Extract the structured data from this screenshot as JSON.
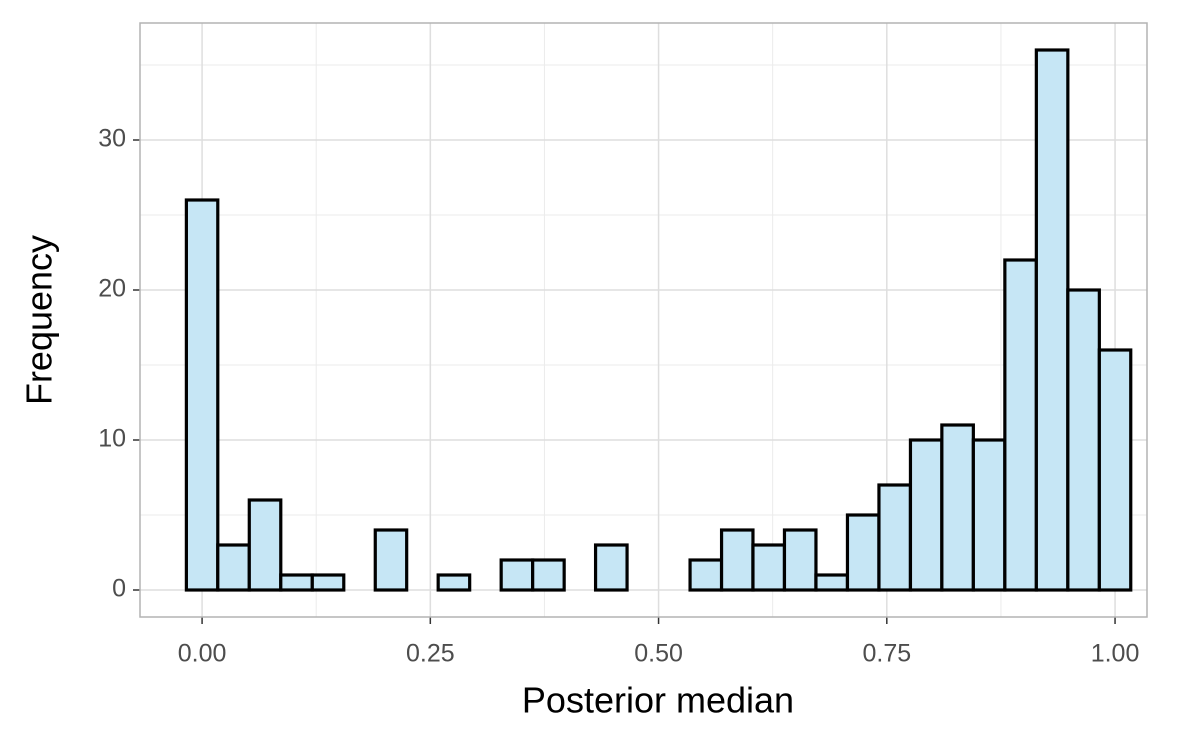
{
  "chart_data": {
    "type": "histogram",
    "x_label": "Posterior median",
    "y_label": "Frequency",
    "bins": [
      -0.0172,
      0.0172,
      0.0517,
      0.0862,
      0.1207,
      0.1552,
      0.1897,
      0.2241,
      0.2586,
      0.2931,
      0.3276,
      0.3621,
      0.3966,
      0.431,
      0.4655,
      0.5,
      0.5345,
      0.569,
      0.6034,
      0.6379,
      0.6724,
      0.7069,
      0.7414,
      0.7759,
      0.8103,
      0.8448,
      0.8793,
      0.9138,
      0.9483,
      0.9828,
      1.0172
    ],
    "values": [
      26,
      3,
      6,
      1,
      1,
      0,
      4,
      0,
      1,
      0,
      2,
      2,
      0,
      3,
      0,
      0,
      2,
      4,
      3,
      4,
      1,
      5,
      7,
      10,
      11,
      10,
      22,
      36,
      20,
      16
    ],
    "color": "#c6e6f5",
    "edge_color": "#000000",
    "xlim": [
      -0.068,
      1.035
    ],
    "ylim": [
      -1.8,
      37.8
    ],
    "xticks": [
      {
        "value": 0,
        "label": "0.00"
      },
      {
        "value": 0.25,
        "label": "0.25"
      },
      {
        "value": 0.5,
        "label": "0.50"
      },
      {
        "value": 0.75,
        "label": "0.75"
      },
      {
        "value": 1,
        "label": "1.00"
      }
    ],
    "yticks": [
      0,
      10,
      20,
      30
    ],
    "x_minor_ticks": [
      0.125,
      0.375,
      0.625,
      0.875
    ],
    "y_minor_ticks": [
      5,
      15,
      25,
      35
    ],
    "grid": true
  }
}
